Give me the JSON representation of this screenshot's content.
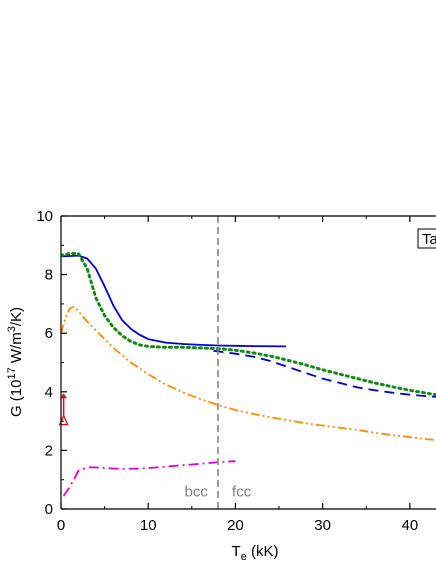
{
  "chart_data": {
    "type": "line",
    "title": "",
    "xlabel": {
      "main": "T",
      "sub": "e",
      "unit": " (kK)"
    },
    "ylabel": {
      "pre": "G (10",
      "exp1": "17",
      "mid": " W/m",
      "exp2": "3",
      "post": "/K)"
    },
    "xlim": [
      0,
      43
    ],
    "ylim": [
      0,
      10
    ],
    "xticks": [
      0,
      10,
      20,
      30,
      40
    ],
    "yticks": [
      0,
      2,
      4,
      6,
      8,
      10
    ],
    "grid": false,
    "legend_label": "Ta",
    "legend_placement": "top-right",
    "vline": {
      "x": 18,
      "color": "#808080"
    },
    "region_labels": [
      {
        "text": "bcc",
        "x": 15.5,
        "y": 0.6
      },
      {
        "text": "fcc",
        "x": 20.7,
        "y": 0.6
      }
    ],
    "series": [
      {
        "color": "#0000dd",
        "style": "solid",
        "points": [
          [
            0,
            8.62
          ],
          [
            2,
            8.65
          ],
          [
            3,
            8.55
          ],
          [
            4,
            8.2
          ],
          [
            5,
            7.6
          ],
          [
            6,
            6.95
          ],
          [
            7,
            6.45
          ],
          [
            8,
            6.15
          ],
          [
            9,
            5.95
          ],
          [
            10,
            5.8
          ],
          [
            12,
            5.68
          ],
          [
            14,
            5.63
          ],
          [
            16,
            5.6
          ],
          [
            18,
            5.58
          ],
          [
            20,
            5.57
          ],
          [
            22,
            5.56
          ],
          [
            25.8,
            5.55
          ]
        ]
      },
      {
        "color": "#0000dd",
        "style": "dashed",
        "points": [
          [
            17.5,
            5.4
          ],
          [
            20,
            5.3
          ],
          [
            22,
            5.2
          ],
          [
            24,
            5.05
          ],
          [
            26,
            4.85
          ],
          [
            28,
            4.65
          ],
          [
            30,
            4.45
          ],
          [
            32,
            4.3
          ],
          [
            34,
            4.15
          ],
          [
            36,
            4.05
          ],
          [
            38,
            3.97
          ],
          [
            40,
            3.9
          ],
          [
            42,
            3.85
          ],
          [
            43,
            3.83
          ]
        ]
      },
      {
        "color": "#138a13",
        "style": "dotted",
        "points": [
          [
            0,
            8.65
          ],
          [
            1,
            8.72
          ],
          [
            2,
            8.72
          ],
          [
            3,
            8.2
          ],
          [
            4,
            7.2
          ],
          [
            5,
            6.6
          ],
          [
            6,
            6.2
          ],
          [
            7,
            5.92
          ],
          [
            8,
            5.72
          ],
          [
            9,
            5.6
          ],
          [
            10,
            5.55
          ],
          [
            12,
            5.52
          ],
          [
            14,
            5.52
          ],
          [
            16,
            5.5
          ],
          [
            18,
            5.47
          ],
          [
            20,
            5.42
          ],
          [
            22,
            5.33
          ],
          [
            24,
            5.22
          ],
          [
            26,
            5.08
          ],
          [
            28,
            4.92
          ],
          [
            30,
            4.75
          ],
          [
            32,
            4.6
          ],
          [
            34,
            4.45
          ],
          [
            36,
            4.3
          ],
          [
            38,
            4.17
          ],
          [
            40,
            4.05
          ],
          [
            42,
            3.95
          ],
          [
            43,
            3.9
          ]
        ]
      },
      {
        "color": "#ff8c00",
        "style": "dashdotdot",
        "points": [
          [
            0,
            6
          ],
          [
            0.5,
            6.5
          ],
          [
            1,
            6.85
          ],
          [
            1.5,
            6.9
          ],
          [
            2,
            6.75
          ],
          [
            3,
            6.4
          ],
          [
            4,
            6.1
          ],
          [
            5,
            5.8
          ],
          [
            6,
            5.5
          ],
          [
            8,
            5
          ],
          [
            10,
            4.6
          ],
          [
            12,
            4.25
          ],
          [
            14,
            3.98
          ],
          [
            16,
            3.75
          ],
          [
            18,
            3.55
          ],
          [
            20,
            3.38
          ],
          [
            22,
            3.25
          ],
          [
            24,
            3.13
          ],
          [
            26,
            3.03
          ],
          [
            28,
            2.93
          ],
          [
            30,
            2.85
          ],
          [
            32,
            2.77
          ],
          [
            34,
            2.7
          ],
          [
            36,
            2.6
          ],
          [
            38,
            2.52
          ],
          [
            40,
            2.45
          ],
          [
            42,
            2.38
          ],
          [
            43,
            2.35
          ]
        ]
      },
      {
        "color": "#e000e0",
        "style": "dashdot",
        "points": [
          [
            0.3,
            0.45
          ],
          [
            1,
            0.75
          ],
          [
            2,
            1.3
          ],
          [
            3,
            1.42
          ],
          [
            4,
            1.42
          ],
          [
            5,
            1.4
          ],
          [
            7,
            1.37
          ],
          [
            9,
            1.38
          ],
          [
            11,
            1.42
          ],
          [
            13,
            1.47
          ],
          [
            15,
            1.52
          ],
          [
            17,
            1.57
          ],
          [
            18,
            1.6
          ],
          [
            20,
            1.63
          ]
        ]
      }
    ],
    "marker": {
      "color": "#e01010",
      "x": 0.3,
      "y_base": 3.05,
      "y_top": 3.95
    }
  }
}
